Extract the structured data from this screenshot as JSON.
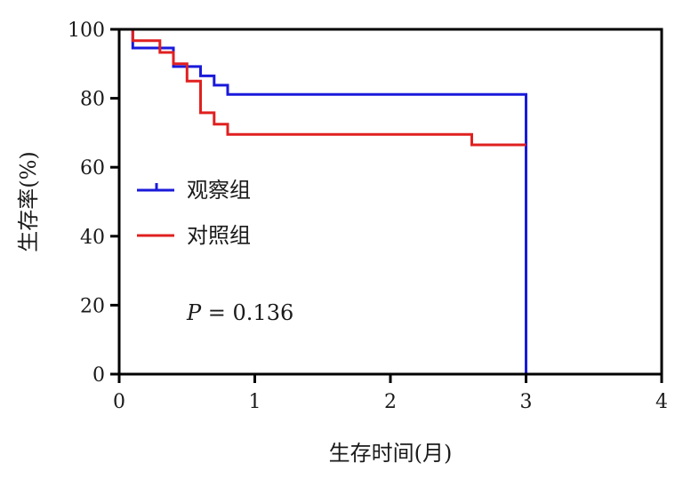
{
  "chart_data": {
    "type": "line",
    "title": "",
    "xlabel": "生存时间(月)",
    "ylabel": "生存率(%)",
    "xlim": [
      0,
      4
    ],
    "ylim": [
      0,
      100
    ],
    "x_ticks": [
      0,
      1,
      2,
      3,
      4
    ],
    "y_ticks": [
      0,
      20,
      40,
      60,
      80,
      100
    ],
    "grid": false,
    "legend_position": "left",
    "annotation": {
      "prefix": "P",
      "text": " = 0.136"
    },
    "series": [
      {
        "name": "观察组",
        "color": "#1a1adb",
        "step_points": [
          [
            0,
            100
          ],
          [
            0.1,
            100
          ],
          [
            0.1,
            94.6
          ],
          [
            0.3,
            94.6
          ],
          [
            0.3,
            94.6
          ],
          [
            0.4,
            94.6
          ],
          [
            0.4,
            89.2
          ],
          [
            0.6,
            89.2
          ],
          [
            0.6,
            86.5
          ],
          [
            0.7,
            86.5
          ],
          [
            0.7,
            83.8
          ],
          [
            0.8,
            83.8
          ],
          [
            0.8,
            81.1
          ],
          [
            3.0,
            81.1
          ],
          [
            3.0,
            0
          ]
        ]
      },
      {
        "name": "对照组",
        "color": "#e02020",
        "step_points": [
          [
            0,
            100
          ],
          [
            0.1,
            100
          ],
          [
            0.1,
            96.7
          ],
          [
            0.3,
            96.7
          ],
          [
            0.3,
            93.3
          ],
          [
            0.4,
            93.3
          ],
          [
            0.4,
            90.0
          ],
          [
            0.5,
            90.0
          ],
          [
            0.5,
            85.0
          ],
          [
            0.6,
            85.0
          ],
          [
            0.6,
            75.8
          ],
          [
            0.7,
            75.8
          ],
          [
            0.7,
            72.5
          ],
          [
            0.8,
            72.5
          ],
          [
            0.8,
            69.5
          ],
          [
            2.6,
            69.5
          ],
          [
            2.6,
            66.5
          ],
          [
            3.0,
            66.5
          ]
        ]
      }
    ]
  }
}
